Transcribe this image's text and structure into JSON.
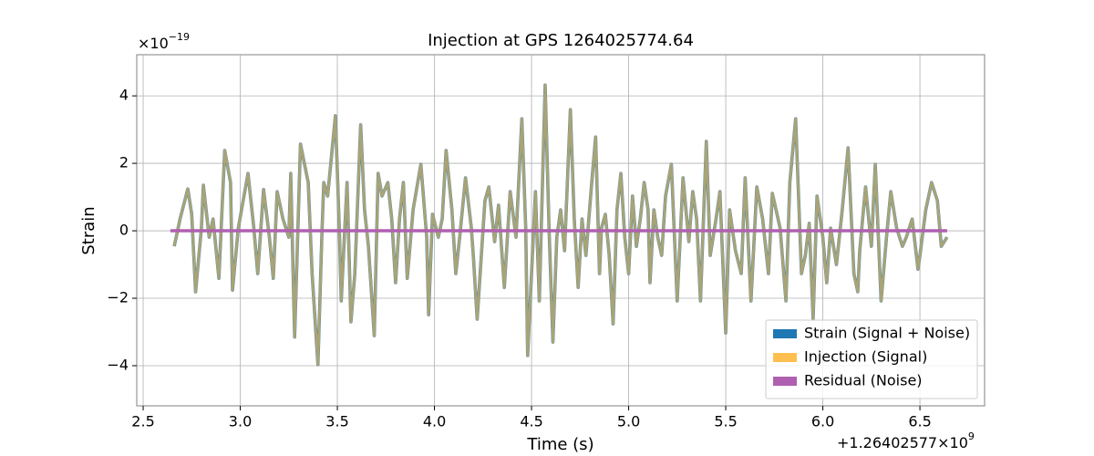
{
  "chart_data": {
    "type": "line",
    "title": "Injection at GPS 1264025774.64",
    "xlabel": "Time (s)",
    "ylabel": "Strain",
    "x_offset_label": {
      "base": "+1.26402577×10",
      "exponent": "9"
    },
    "y_scale_label": {
      "base": "×10",
      "exponent": "−19"
    },
    "xlim": [
      2.467,
      6.833
    ],
    "ylim": [
      -5.19,
      5.22
    ],
    "xticks": [
      2.5,
      {
        "value": 3,
        "label": "3.0"
      },
      3.5,
      {
        "value": 4,
        "label": "4.0"
      },
      4.5,
      {
        "value": 5,
        "label": "5.0"
      },
      5.5,
      {
        "value": 6,
        "label": "6.0"
      },
      6.5
    ],
    "yticks": [
      {
        "value": -4,
        "label": "−4"
      },
      {
        "value": -2,
        "label": "−2"
      },
      0,
      2,
      4
    ],
    "grid": true,
    "legend": "lower right",
    "x": [
      2.66,
      2.69,
      2.73,
      2.75,
      2.77,
      2.8,
      2.81,
      2.84,
      2.86,
      2.89,
      2.92,
      2.95,
      2.96,
      2.99,
      3.04,
      3.07,
      3.09,
      3.12,
      3.15,
      3.17,
      3.19,
      3.22,
      3.25,
      3.26,
      3.28,
      3.31,
      3.35,
      3.37,
      3.4,
      3.42,
      3.43,
      3.45,
      3.49,
      3.51,
      3.52,
      3.55,
      3.57,
      3.59,
      3.62,
      3.64,
      3.66,
      3.69,
      3.71,
      3.73,
      3.76,
      3.78,
      3.8,
      3.82,
      3.84,
      3.86,
      3.89,
      3.91,
      3.93,
      3.96,
      3.97,
      3.99,
      4.02,
      4.04,
      4.06,
      4.09,
      4.11,
      4.13,
      4.16,
      4.19,
      4.2,
      4.22,
      4.24,
      4.26,
      4.28,
      4.31,
      4.33,
      4.36,
      4.39,
      4.42,
      4.45,
      4.47,
      4.48,
      4.5,
      4.52,
      4.54,
      4.57,
      4.59,
      4.61,
      4.63,
      4.65,
      4.67,
      4.7,
      4.72,
      4.74,
      4.76,
      4.78,
      4.81,
      4.83,
      4.85,
      4.86,
      4.88,
      4.9,
      4.92,
      4.94,
      4.96,
      4.98,
      5.0,
      5.02,
      5.04,
      5.06,
      5.08,
      5.1,
      5.11,
      5.13,
      5.15,
      5.17,
      5.19,
      5.22,
      5.25,
      5.27,
      5.28,
      5.31,
      5.33,
      5.35,
      5.37,
      5.4,
      5.42,
      5.45,
      5.47,
      5.5,
      5.52,
      5.55,
      5.58,
      5.6,
      5.63,
      5.66,
      5.69,
      5.72,
      5.74,
      5.78,
      5.81,
      5.83,
      5.86,
      5.89,
      5.91,
      5.93,
      5.95,
      5.97,
      6.0,
      6.02,
      6.04,
      6.07,
      6.1,
      6.13,
      6.16,
      6.18,
      6.19,
      6.22,
      6.25,
      6.27,
      6.3,
      6.33,
      6.35,
      6.38,
      6.41,
      6.43,
      6.46,
      6.49,
      6.5,
      6.53,
      6.56,
      6.59,
      6.61,
      6.64
    ],
    "series": [
      {
        "name": "Strain (Signal + Noise)",
        "color": "#1f77b4",
        "values": [
          -0.46,
          0.35,
          1.24,
          0.49,
          -1.81,
          0.08,
          1.35,
          -0.19,
          0.35,
          -1.41,
          2.38,
          1.43,
          -1.76,
          0.08,
          1.7,
          0.08,
          -1.27,
          1.22,
          -0.19,
          -1.41,
          1.16,
          0.35,
          -0.19,
          1.7,
          -3.15,
          2.57,
          1.43,
          -1.27,
          -3.97,
          -0.19,
          1.43,
          1.03,
          3.41,
          0.08,
          -2.08,
          1.43,
          -2.7,
          -1.27,
          3.14,
          0.62,
          -0.46,
          -3.11,
          1.7,
          1.03,
          1.43,
          0.35,
          -1.54,
          0.35,
          1.43,
          -1.41,
          0.62,
          1.3,
          1.97,
          -0.19,
          -2.49,
          0.49,
          -0.19,
          0.35,
          2.38,
          0.62,
          -1.27,
          -0.19,
          1.57,
          0.08,
          -0.73,
          -2.62,
          -0.86,
          0.89,
          1.3,
          -0.32,
          0.76,
          -1.68,
          1.16,
          -0.19,
          3.32,
          0.08,
          -3.7,
          -1.27,
          1.16,
          -2.08,
          4.32,
          0.08,
          -3.3,
          -0.19,
          0.62,
          -0.59,
          3.59,
          0.35,
          -1.68,
          0.35,
          -0.73,
          1.43,
          2.78,
          -1.27,
          0.08,
          0.49,
          -0.73,
          -2.76,
          0.62,
          1.7,
          -0.19,
          -1.27,
          1.03,
          -0.46,
          0.35,
          1.43,
          0.62,
          -1.54,
          0.62,
          -0.19,
          -0.73,
          1.03,
          1.97,
          -2.08,
          0.35,
          1.57,
          -0.32,
          1.16,
          0.35,
          -2.08,
          2.65,
          -0.73,
          0.35,
          1.16,
          -3.03,
          0.62,
          -0.59,
          -1.27,
          1.57,
          -2.08,
          1.3,
          0.35,
          -1.27,
          1.11,
          0.08,
          -2.08,
          1.43,
          3.32,
          -1.27,
          -0.73,
          0.22,
          -2.62,
          1.03,
          -0.19,
          -1.54,
          0.08,
          -1.0,
          0.62,
          2.46,
          -1.27,
          -1.81,
          -0.59,
          1.3,
          -0.46,
          1.97,
          -2.08,
          -0.05,
          1.16,
          0.08,
          -0.46,
          -0.19,
          0.35,
          -1.14,
          -0.73,
          0.62,
          1.43,
          0.89,
          -0.46,
          -0.19
        ]
      },
      {
        "name": "Injection (Signal)",
        "color": "#ffbf50",
        "values": [
          -0.46,
          0.35,
          1.24,
          0.49,
          -1.81,
          0.08,
          1.35,
          -0.19,
          0.35,
          -1.41,
          2.38,
          1.43,
          -1.76,
          0.08,
          1.7,
          0.08,
          -1.27,
          1.22,
          -0.19,
          -1.41,
          1.16,
          0.35,
          -0.19,
          1.7,
          -3.15,
          2.57,
          1.43,
          -1.27,
          -3.97,
          -0.19,
          1.43,
          1.03,
          3.41,
          0.08,
          -2.08,
          1.43,
          -2.7,
          -1.27,
          3.14,
          0.62,
          -0.46,
          -3.11,
          1.7,
          1.03,
          1.43,
          0.35,
          -1.54,
          0.35,
          1.43,
          -1.41,
          0.62,
          1.3,
          1.97,
          -0.19,
          -2.49,
          0.49,
          -0.19,
          0.35,
          2.38,
          0.62,
          -1.27,
          -0.19,
          1.57,
          0.08,
          -0.73,
          -2.62,
          -0.86,
          0.89,
          1.3,
          -0.32,
          0.76,
          -1.68,
          1.16,
          -0.19,
          3.32,
          0.08,
          -3.7,
          -1.27,
          1.16,
          -2.08,
          4.32,
          0.08,
          -3.3,
          -0.19,
          0.62,
          -0.59,
          3.59,
          0.35,
          -1.68,
          0.35,
          -0.73,
          1.43,
          2.78,
          -1.27,
          0.08,
          0.49,
          -0.73,
          -2.76,
          0.62,
          1.7,
          -0.19,
          -1.27,
          1.03,
          -0.46,
          0.35,
          1.43,
          0.62,
          -1.54,
          0.62,
          -0.19,
          -0.73,
          1.03,
          1.97,
          -2.08,
          0.35,
          1.57,
          -0.32,
          1.16,
          0.35,
          -2.08,
          2.65,
          -0.73,
          0.35,
          1.16,
          -3.03,
          0.62,
          -0.59,
          -1.27,
          1.57,
          -2.08,
          1.3,
          0.35,
          -1.27,
          1.11,
          0.08,
          -2.08,
          1.43,
          3.32,
          -1.27,
          -0.73,
          0.22,
          -2.62,
          1.03,
          -0.19,
          -1.54,
          0.08,
          -1.0,
          0.62,
          2.46,
          -1.27,
          -1.81,
          -0.59,
          1.3,
          -0.46,
          1.97,
          -2.08,
          -0.05,
          1.16,
          0.08,
          -0.46,
          -0.19,
          0.35,
          -1.14,
          -0.73,
          0.62,
          1.43,
          0.89,
          -0.46,
          -0.19
        ]
      },
      {
        "name": "Residual (Noise)",
        "color": "#b060b0",
        "x": [
          2.64,
          6.64
        ],
        "values": [
          0,
          0
        ]
      }
    ]
  }
}
